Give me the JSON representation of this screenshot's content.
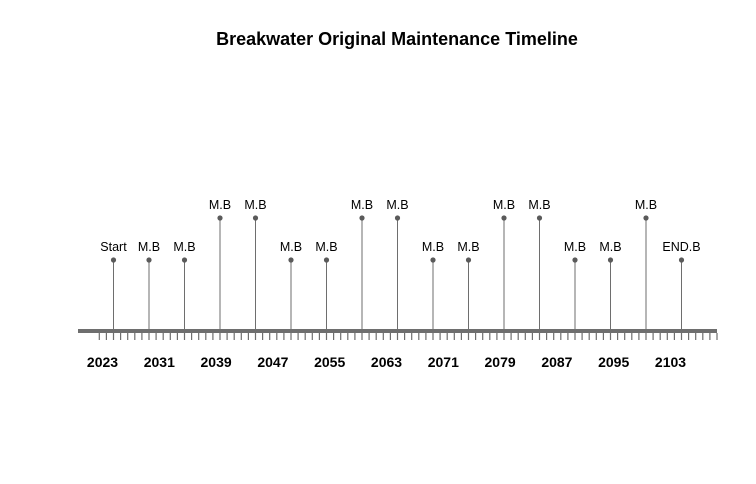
{
  "chart_data": {
    "type": "timeline",
    "title": "Breakwater Original Maintenance Timeline",
    "events": [
      {
        "year": 2023,
        "label": "Start"
      },
      {
        "year": 2028,
        "label": "M.B"
      },
      {
        "year": 2033,
        "label": "M.B"
      },
      {
        "year": 2038,
        "label": "M.B"
      },
      {
        "year": 2043,
        "label": "M.B"
      },
      {
        "year": 2048,
        "label": "M.B"
      },
      {
        "year": 2053,
        "label": "M.B"
      },
      {
        "year": 2058,
        "label": "M.B"
      },
      {
        "year": 2063,
        "label": "M.B"
      },
      {
        "year": 2068,
        "label": "M.B"
      },
      {
        "year": 2073,
        "label": "M.B"
      },
      {
        "year": 2078,
        "label": "M.B"
      },
      {
        "year": 2083,
        "label": "M.B"
      },
      {
        "year": 2088,
        "label": "M.B"
      },
      {
        "year": 2093,
        "label": "M.B"
      },
      {
        "year": 2098,
        "label": "M.B"
      },
      {
        "year": 2103,
        "label": "END.B"
      }
    ],
    "year_ticks": [
      2023,
      2031,
      2039,
      2047,
      2055,
      2063,
      2071,
      2079,
      2087,
      2095,
      2103
    ],
    "x_range": [
      2021,
      2108
    ],
    "minor_tick_step": 1,
    "colors": {
      "axis": "#6e6e6e",
      "stem": "#6e6e6e",
      "point": "#5a5a5a",
      "text": "#000000"
    }
  }
}
